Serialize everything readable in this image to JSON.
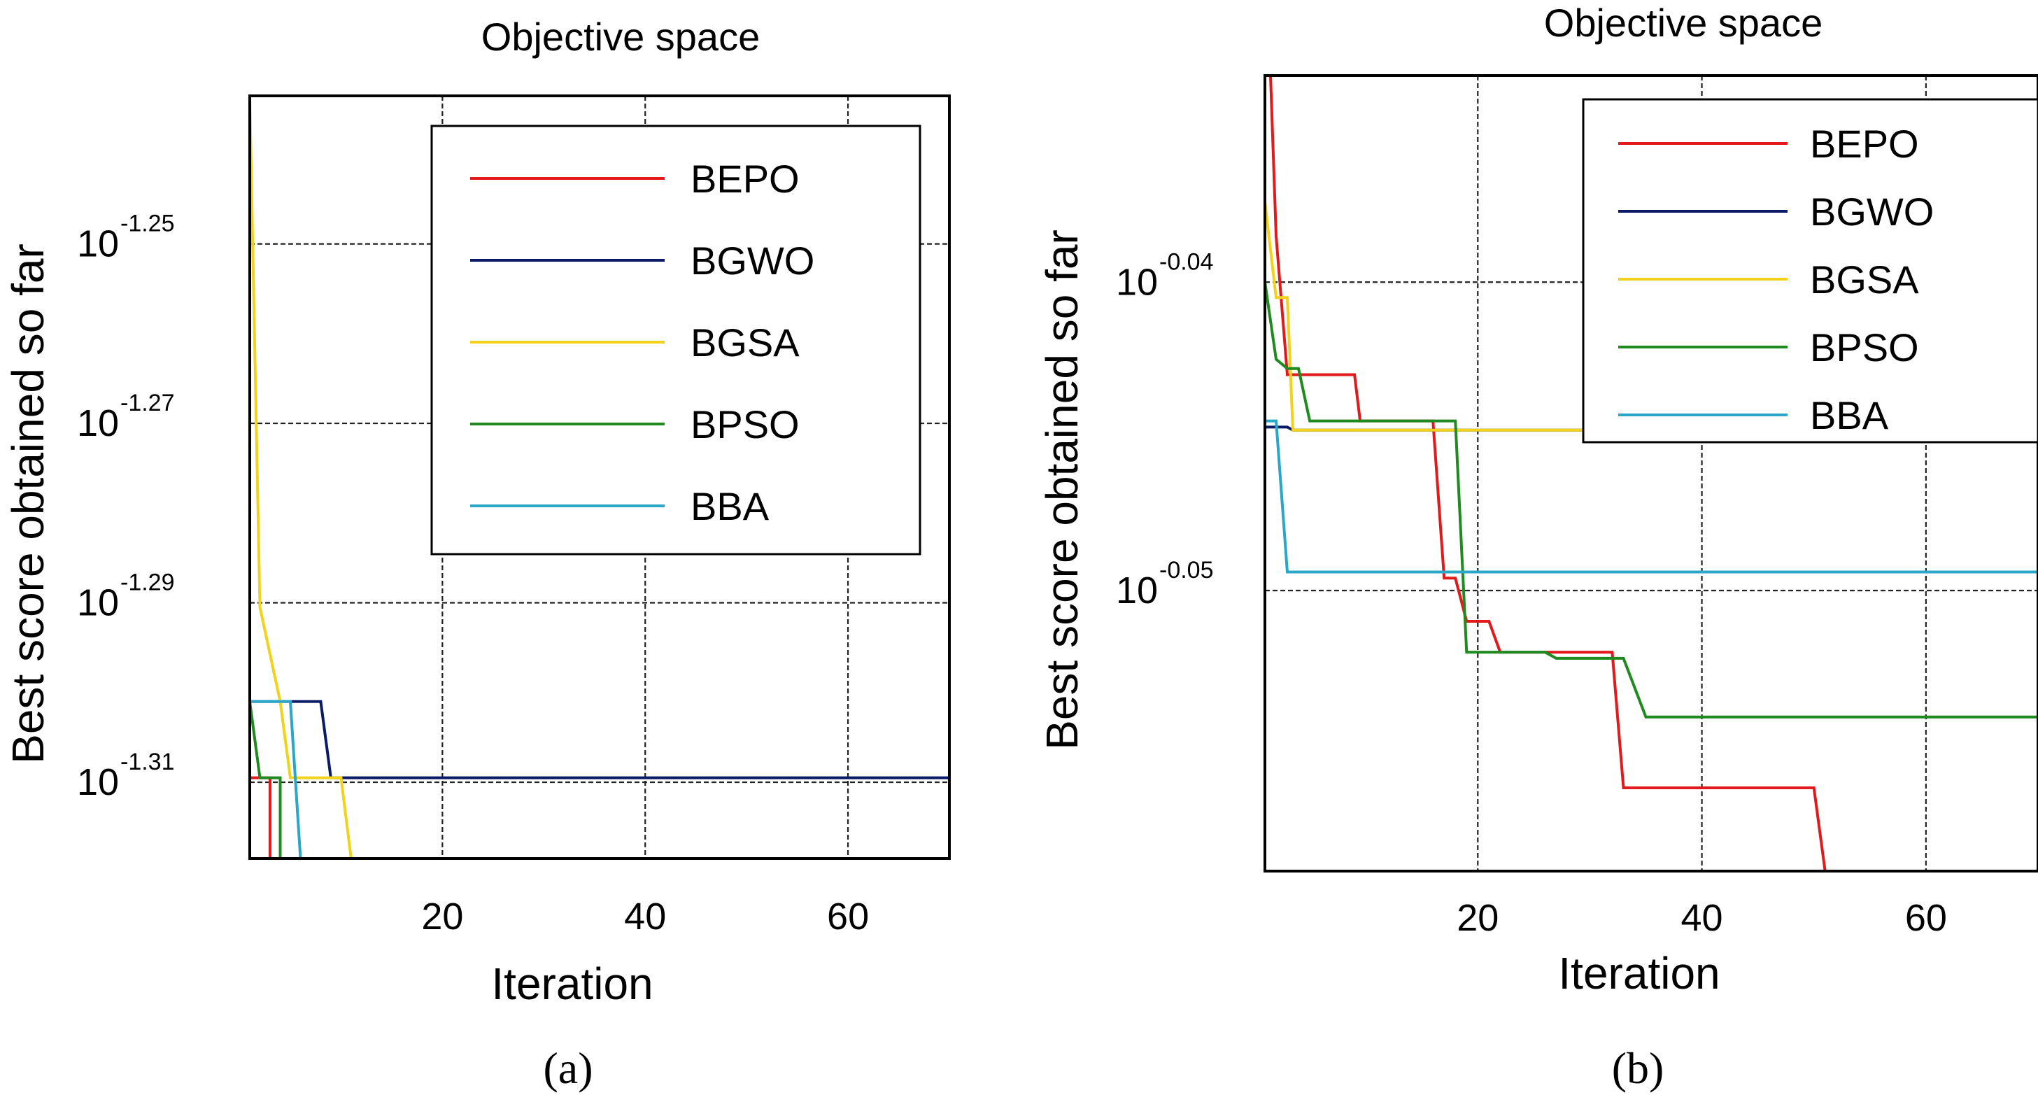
{
  "chart_data": [
    {
      "type": "line",
      "panel_label": "(a)",
      "title": "Objective space",
      "xlabel": "Iteration",
      "ylabel": "Best score obtained so far",
      "xlim": [
        1,
        70
      ],
      "y_log_exponent_lim": [
        -1.3185,
        -1.2335
      ],
      "y_scale": "log",
      "x_ticks": [
        20,
        40,
        60
      ],
      "x_tick_labels": [
        "20",
        "40",
        "60"
      ],
      "y_ticks": [
        -1.25,
        -1.27,
        -1.29,
        -1.31
      ],
      "y_tick_base": "10",
      "y_tick_exponents": [
        "-1.25",
        "-1.27",
        "-1.29",
        "-1.31"
      ],
      "grid": true,
      "legend_position": "top-right",
      "series": [
        {
          "name": "BEPO",
          "color": "#e31a1c",
          "x": [
            1,
            3,
            3,
            3,
            70
          ],
          "y_log": [
            -1.3095,
            -1.3095,
            -1.3185,
            -1.3185,
            -1.3185
          ]
        },
        {
          "name": "BGWO",
          "color": "#0a1a66",
          "x": [
            1,
            8,
            9,
            70
          ],
          "y_log": [
            -1.301,
            -1.301,
            -1.3095,
            -1.3095
          ]
        },
        {
          "name": "BGSA",
          "color": "#f2d21b",
          "x": [
            1,
            2,
            4,
            5,
            10,
            11,
            70
          ],
          "y_log": [
            -1.2335,
            -1.2905,
            -1.301,
            -1.3095,
            -1.3095,
            -1.3185,
            -1.3185
          ]
        },
        {
          "name": "BPSO",
          "color": "#1f8a1f",
          "x": [
            1,
            2,
            4,
            4,
            70
          ],
          "y_log": [
            -1.301,
            -1.3095,
            -1.3095,
            -1.3185,
            -1.3185
          ]
        },
        {
          "name": "BBA",
          "color": "#2aa6c8",
          "x": [
            1,
            5,
            6,
            70
          ],
          "y_log": [
            -1.301,
            -1.301,
            -1.3185,
            -1.3185
          ]
        }
      ]
    },
    {
      "type": "line",
      "panel_label": "(b)",
      "title": "Objective space",
      "xlabel": "Iteration",
      "ylabel": "Best score obtained so far",
      "xlim": [
        1,
        70
      ],
      "y_log_exponent_lim": [
        -0.0591,
        -0.0333
      ],
      "y_scale": "log",
      "x_ticks": [
        20,
        40,
        60
      ],
      "x_tick_labels": [
        "20",
        "40",
        "60"
      ],
      "y_ticks": [
        -0.04,
        -0.05
      ],
      "y_tick_base": "10",
      "y_tick_exponents": [
        "-0.04",
        "-0.05"
      ],
      "grid": true,
      "legend_position": "top-right",
      "series": [
        {
          "name": "BEPO",
          "color": "#e31a1c",
          "x": [
            1,
            1.5,
            2,
            3,
            9,
            9.5,
            13,
            16,
            17,
            18,
            19,
            21,
            22,
            23,
            32,
            33,
            50,
            51,
            70
          ],
          "y_log": [
            -0.0333,
            -0.0333,
            -0.0385,
            -0.043,
            -0.043,
            -0.0445,
            -0.0445,
            -0.0445,
            -0.0496,
            -0.0496,
            -0.051,
            -0.051,
            -0.052,
            -0.052,
            -0.052,
            -0.0564,
            -0.0564,
            -0.0591,
            -0.0591
          ]
        },
        {
          "name": "BGWO",
          "color": "#0a1a66",
          "x": [
            1,
            3,
            3.5,
            70
          ],
          "y_log": [
            -0.0447,
            -0.0447,
            -0.0448,
            -0.0448
          ]
        },
        {
          "name": "BGSA",
          "color": "#f2d21b",
          "x": [
            1,
            2,
            3,
            3.5,
            70
          ],
          "y_log": [
            -0.0374,
            -0.0405,
            -0.0405,
            -0.0448,
            -0.0448
          ]
        },
        {
          "name": "BPSO",
          "color": "#1f8a1f",
          "x": [
            1,
            2,
            3,
            4,
            5,
            14,
            17,
            18,
            19,
            26,
            27,
            33,
            35,
            70
          ],
          "y_log": [
            -0.04,
            -0.0425,
            -0.0428,
            -0.0428,
            -0.0445,
            -0.0445,
            -0.0445,
            -0.0445,
            -0.052,
            -0.052,
            -0.0522,
            -0.0522,
            -0.0541,
            -0.0541
          ]
        },
        {
          "name": "BBA",
          "color": "#2aa6c8",
          "x": [
            1,
            2,
            3,
            70
          ],
          "y_log": [
            -0.0445,
            -0.0445,
            -0.0494,
            -0.0494
          ]
        }
      ]
    }
  ]
}
